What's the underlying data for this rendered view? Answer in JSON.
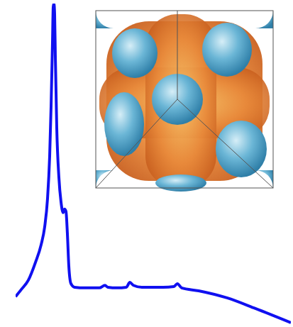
{
  "chart_data": {
    "type": "line",
    "color": "#1010f0",
    "tick_labels": false,
    "xlim": [
      22,
      410
    ],
    "ylim": [
      0,
      100
    ],
    "x": [
      22,
      30,
      40,
      50,
      58,
      63,
      67,
      70,
      72,
      74,
      75,
      76,
      77,
      78,
      80,
      83,
      86,
      89,
      91,
      93,
      95,
      97,
      100,
      105,
      120,
      140,
      148,
      152,
      165,
      178,
      183,
      188,
      200,
      230,
      245,
      250,
      256,
      280,
      320,
      360,
      410
    ],
    "values": [
      9.2,
      11.4,
      14.3,
      19.8,
      25.3,
      30.8,
      39.6,
      52.7,
      68.1,
      87.9,
      98.9,
      100,
      96.7,
      83.5,
      61.5,
      46.2,
      38.5,
      35.2,
      36.3,
      35.6,
      28.6,
      18.7,
      13.2,
      12.1,
      11.9,
      11.9,
      12.7,
      12.1,
      11.9,
      12.1,
      13.6,
      12.7,
      12.1,
      12.1,
      12.3,
      13.2,
      11.9,
      11.0,
      8.8,
      5.5,
      1.1
    ]
  }
}
